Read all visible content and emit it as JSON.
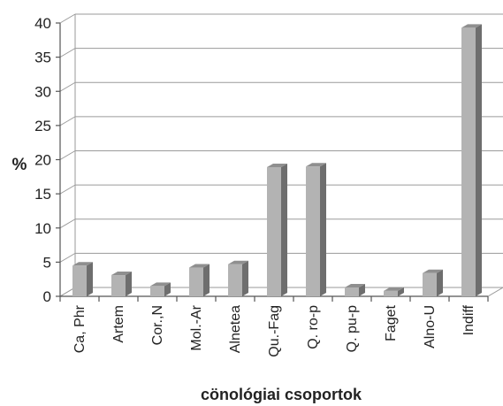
{
  "chart_data": {
    "type": "bar",
    "categories": [
      "Ca, Phr",
      "Artem",
      "Cor.,N",
      "Mol.-Ar",
      "Alnetea",
      "Qu.-Fag",
      "Q. ro-p",
      "Q. pu-p",
      "Faget",
      "Alno-U",
      "Indiff"
    ],
    "values": [
      4.5,
      3.1,
      1.5,
      4.2,
      4.7,
      18.9,
      19.0,
      1.3,
      0.8,
      3.4,
      39.3
    ],
    "xlabel": "cönológiai csoportok",
    "ylabel": "%",
    "ylim": [
      0,
      40
    ],
    "yticks": [
      0,
      5,
      10,
      15,
      20,
      25,
      30,
      35,
      40
    ],
    "grid": true,
    "legend": "none",
    "colors": {
      "bar_front": "#b3b3b3",
      "bar_side": "#6e6e6e",
      "bar_top": "#8f8f8f",
      "grid": "#9a9a9a",
      "axis": "#555555"
    }
  }
}
